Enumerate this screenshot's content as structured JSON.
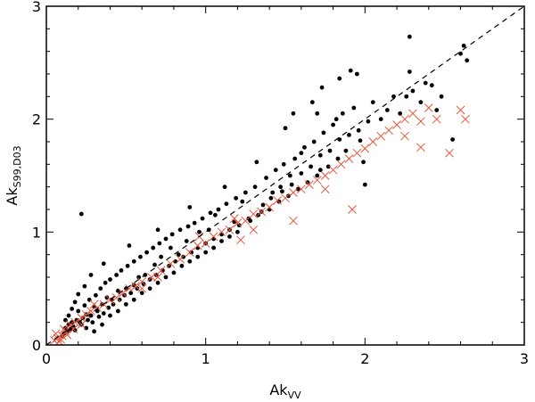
{
  "chart_data": {
    "type": "scatter",
    "xlabel": {
      "main": "Ak",
      "sub": "VV"
    },
    "ylabel": {
      "main": "Ak",
      "sub": "S99,D03"
    },
    "xlim": [
      0,
      3
    ],
    "ylim": [
      0,
      3
    ],
    "xticks": [
      0,
      1,
      2,
      3
    ],
    "yticks": [
      0,
      1,
      2,
      3
    ],
    "x_tick_labels": [
      "0",
      "1",
      "2",
      "3"
    ],
    "y_tick_labels": [
      "0",
      "1",
      "2",
      "3"
    ],
    "reference_line": {
      "style": "dashed",
      "from": [
        0,
        0
      ],
      "to": [
        3,
        3
      ]
    },
    "grid": false,
    "series": [
      {
        "marker": "dot",
        "color": "#000000",
        "points": [
          [
            0.22,
            1.16
          ],
          [
            2.28,
            2.73
          ],
          [
            2.6,
            2.58
          ],
          [
            2.64,
            2.52
          ],
          [
            2.62,
            2.65
          ],
          [
            1.91,
            2.43
          ],
          [
            1.95,
            2.4
          ],
          [
            1.84,
            2.36
          ],
          [
            1.73,
            2.28
          ],
          [
            2.28,
            2.42
          ],
          [
            2.45,
            2.08
          ],
          [
            2.55,
            1.82
          ],
          [
            1.97,
            1.81
          ],
          [
            1.99,
            1.62
          ],
          [
            2.0,
            1.42
          ],
          [
            1.55,
            2.05
          ],
          [
            1.5,
            1.92
          ],
          [
            1.67,
            2.15
          ],
          [
            1.7,
            2.05
          ],
          [
            1.82,
            2.0
          ],
          [
            1.6,
            1.7
          ],
          [
            1.53,
            1.5
          ],
          [
            1.72,
            1.55
          ],
          [
            1.42,
            1.35
          ],
          [
            1.47,
            1.4
          ],
          [
            1.36,
            1.24
          ],
          [
            1.23,
            1.27
          ],
          [
            1.18,
            1.09
          ],
          [
            1.06,
            1.15
          ],
          [
            1.02,
            1.02
          ],
          [
            0.96,
            1.0
          ],
          [
            0.88,
            0.92
          ],
          [
            0.83,
            0.8
          ],
          [
            0.78,
            0.86
          ],
          [
            0.72,
            0.78
          ],
          [
            0.68,
            0.71
          ],
          [
            0.62,
            0.62
          ],
          [
            0.58,
            0.6
          ],
          [
            0.55,
            0.53
          ],
          [
            0.5,
            0.5
          ],
          [
            0.45,
            0.48
          ],
          [
            0.41,
            0.4
          ],
          [
            0.38,
            0.42
          ],
          [
            0.35,
            0.36
          ],
          [
            0.32,
            0.3
          ],
          [
            0.3,
            0.34
          ],
          [
            0.28,
            0.26
          ],
          [
            0.25,
            0.27
          ],
          [
            0.23,
            0.24
          ],
          [
            0.21,
            0.2
          ],
          [
            0.19,
            0.22
          ],
          [
            0.17,
            0.16
          ],
          [
            0.15,
            0.14
          ],
          [
            0.13,
            0.12
          ],
          [
            0.11,
            0.1
          ],
          [
            0.1,
            0.08
          ],
          [
            0.12,
            0.15
          ],
          [
            0.14,
            0.18
          ],
          [
            0.16,
            0.2
          ],
          [
            0.18,
            0.13
          ],
          [
            0.2,
            0.3
          ],
          [
            0.22,
            0.18
          ],
          [
            0.24,
            0.35
          ],
          [
            0.26,
            0.22
          ],
          [
            0.27,
            0.4
          ],
          [
            0.29,
            0.2
          ],
          [
            0.31,
            0.44
          ],
          [
            0.33,
            0.25
          ],
          [
            0.34,
            0.5
          ],
          [
            0.36,
            0.28
          ],
          [
            0.37,
            0.55
          ],
          [
            0.39,
            0.33
          ],
          [
            0.4,
            0.58
          ],
          [
            0.42,
            0.36
          ],
          [
            0.44,
            0.62
          ],
          [
            0.46,
            0.4
          ],
          [
            0.47,
            0.66
          ],
          [
            0.49,
            0.44
          ],
          [
            0.51,
            0.7
          ],
          [
            0.53,
            0.46
          ],
          [
            0.55,
            0.74
          ],
          [
            0.57,
            0.5
          ],
          [
            0.59,
            0.78
          ],
          [
            0.61,
            0.54
          ],
          [
            0.63,
            0.82
          ],
          [
            0.65,
            0.58
          ],
          [
            0.67,
            0.86
          ],
          [
            0.69,
            0.62
          ],
          [
            0.71,
            0.9
          ],
          [
            0.73,
            0.66
          ],
          [
            0.75,
            0.94
          ],
          [
            0.77,
            0.7
          ],
          [
            0.79,
            0.98
          ],
          [
            0.81,
            0.74
          ],
          [
            0.84,
            1.02
          ],
          [
            0.86,
            0.78
          ],
          [
            0.89,
            1.05
          ],
          [
            0.91,
            0.82
          ],
          [
            0.93,
            1.08
          ],
          [
            0.95,
            0.86
          ],
          [
            0.98,
            1.12
          ],
          [
            1.0,
            0.9
          ],
          [
            1.03,
            1.17
          ],
          [
            1.05,
            0.94
          ],
          [
            1.08,
            1.2
          ],
          [
            1.1,
            0.98
          ],
          [
            1.13,
            1.25
          ],
          [
            1.15,
            1.02
          ],
          [
            1.19,
            1.3
          ],
          [
            1.21,
            1.06
          ],
          [
            1.25,
            1.35
          ],
          [
            1.28,
            1.1
          ],
          [
            1.31,
            1.4
          ],
          [
            1.33,
            1.15
          ],
          [
            1.38,
            1.48
          ],
          [
            1.4,
            1.2
          ],
          [
            1.44,
            1.55
          ],
          [
            1.46,
            1.27
          ],
          [
            1.49,
            1.6
          ],
          [
            1.52,
            1.32
          ],
          [
            1.56,
            1.65
          ],
          [
            1.58,
            1.38
          ],
          [
            1.62,
            1.75
          ],
          [
            1.64,
            1.44
          ],
          [
            1.68,
            1.8
          ],
          [
            1.7,
            1.5
          ],
          [
            1.74,
            1.88
          ],
          [
            1.77,
            1.58
          ],
          [
            1.8,
            1.95
          ],
          [
            1.83,
            1.65
          ],
          [
            1.86,
            2.05
          ],
          [
            1.88,
            1.72
          ],
          [
            1.93,
            2.1
          ],
          [
            1.96,
            1.9
          ],
          [
            2.05,
            2.15
          ],
          [
            2.1,
            2.0
          ],
          [
            2.18,
            2.2
          ],
          [
            2.22,
            2.05
          ],
          [
            2.3,
            2.25
          ],
          [
            2.35,
            2.15
          ],
          [
            2.42,
            2.3
          ],
          [
            2.48,
            2.2
          ],
          [
            1.32,
            1.62
          ],
          [
            1.12,
            1.4
          ],
          [
            0.9,
            1.22
          ],
          [
            0.7,
            1.02
          ],
          [
            0.52,
            0.88
          ],
          [
            0.36,
            0.72
          ],
          [
            0.28,
            0.62
          ],
          [
            0.24,
            0.52
          ],
          [
            0.2,
            0.45
          ],
          [
            0.18,
            0.38
          ],
          [
            0.16,
            0.32
          ],
          [
            0.14,
            0.26
          ],
          [
            0.12,
            0.22
          ],
          [
            0.25,
            0.15
          ],
          [
            0.3,
            0.12
          ],
          [
            0.35,
            0.18
          ],
          [
            0.4,
            0.26
          ],
          [
            0.45,
            0.3
          ],
          [
            0.5,
            0.36
          ],
          [
            0.55,
            0.4
          ],
          [
            0.6,
            0.46
          ],
          [
            0.65,
            0.5
          ],
          [
            0.7,
            0.55
          ],
          [
            0.75,
            0.6
          ],
          [
            0.8,
            0.64
          ],
          [
            0.85,
            0.7
          ],
          [
            0.9,
            0.74
          ],
          [
            0.95,
            0.78
          ],
          [
            1.0,
            0.82
          ],
          [
            1.05,
            0.86
          ],
          [
            1.1,
            0.92
          ],
          [
            1.15,
            0.96
          ],
          [
            1.2,
            1.0
          ],
          [
            1.27,
            1.12
          ],
          [
            1.35,
            1.18
          ],
          [
            1.41,
            1.3
          ],
          [
            1.48,
            1.36
          ],
          [
            1.54,
            1.42
          ],
          [
            1.6,
            1.52
          ],
          [
            1.66,
            1.58
          ],
          [
            1.72,
            1.68
          ],
          [
            1.78,
            1.72
          ],
          [
            1.84,
            1.82
          ],
          [
            1.9,
            1.86
          ],
          [
            2.02,
            1.98
          ],
          [
            2.14,
            2.08
          ],
          [
            2.26,
            2.2
          ],
          [
            2.38,
            2.32
          ]
        ]
      },
      {
        "marker": "x",
        "color": "#e8533a",
        "points": [
          [
            0.05,
            0.04
          ],
          [
            0.07,
            0.06
          ],
          [
            0.08,
            0.03
          ],
          [
            0.1,
            0.08
          ],
          [
            0.06,
            0.1
          ],
          [
            0.12,
            0.12
          ],
          [
            0.09,
            0.05
          ],
          [
            0.11,
            0.14
          ],
          [
            0.13,
            0.09
          ],
          [
            0.15,
            0.18
          ],
          [
            0.18,
            0.2
          ],
          [
            0.22,
            0.24
          ],
          [
            0.25,
            0.27
          ],
          [
            0.28,
            0.3
          ],
          [
            0.32,
            0.33
          ],
          [
            0.36,
            0.36
          ],
          [
            0.4,
            0.4
          ],
          [
            0.44,
            0.42
          ],
          [
            0.48,
            0.46
          ],
          [
            0.52,
            0.5
          ],
          [
            0.56,
            0.52
          ],
          [
            0.6,
            0.56
          ],
          [
            0.66,
            0.6
          ],
          [
            0.72,
            0.66
          ],
          [
            0.78,
            0.72
          ],
          [
            0.84,
            0.76
          ],
          [
            0.9,
            0.82
          ],
          [
            0.95,
            0.88
          ],
          [
            1.0,
            0.9
          ],
          [
            1.05,
            0.96
          ],
          [
            1.1,
            1.0
          ],
          [
            1.15,
            1.02
          ],
          [
            1.2,
            1.08
          ],
          [
            1.25,
            1.1
          ],
          [
            1.3,
            1.16
          ],
          [
            1.35,
            1.18
          ],
          [
            1.4,
            1.22
          ],
          [
            1.45,
            1.28
          ],
          [
            1.5,
            1.3
          ],
          [
            1.55,
            1.35
          ],
          [
            1.6,
            1.38
          ],
          [
            1.65,
            1.42
          ],
          [
            1.7,
            1.46
          ],
          [
            1.75,
            1.5
          ],
          [
            1.8,
            1.55
          ],
          [
            1.85,
            1.6
          ],
          [
            1.9,
            1.65
          ],
          [
            1.95,
            1.7
          ],
          [
            2.0,
            1.74
          ],
          [
            2.05,
            1.8
          ],
          [
            2.1,
            1.85
          ],
          [
            2.15,
            1.9
          ],
          [
            2.2,
            1.95
          ],
          [
            2.25,
            2.0
          ],
          [
            2.3,
            2.05
          ],
          [
            2.35,
            1.98
          ],
          [
            2.4,
            2.1
          ],
          [
            2.45,
            2.0
          ],
          [
            2.6,
            2.08
          ],
          [
            2.63,
            2.0
          ],
          [
            2.53,
            1.7
          ],
          [
            2.25,
            1.85
          ],
          [
            2.35,
            1.75
          ],
          [
            1.92,
            1.2
          ],
          [
            1.75,
            1.38
          ],
          [
            1.55,
            1.1
          ],
          [
            1.3,
            1.02
          ],
          [
            1.22,
            0.93
          ],
          [
            1.18,
            1.12
          ],
          [
            0.96,
            0.96
          ],
          [
            0.7,
            0.6
          ],
          [
            0.6,
            0.5
          ],
          [
            0.3,
            0.36
          ],
          [
            0.22,
            0.18
          ],
          [
            0.17,
            0.14
          ]
        ]
      }
    ]
  }
}
